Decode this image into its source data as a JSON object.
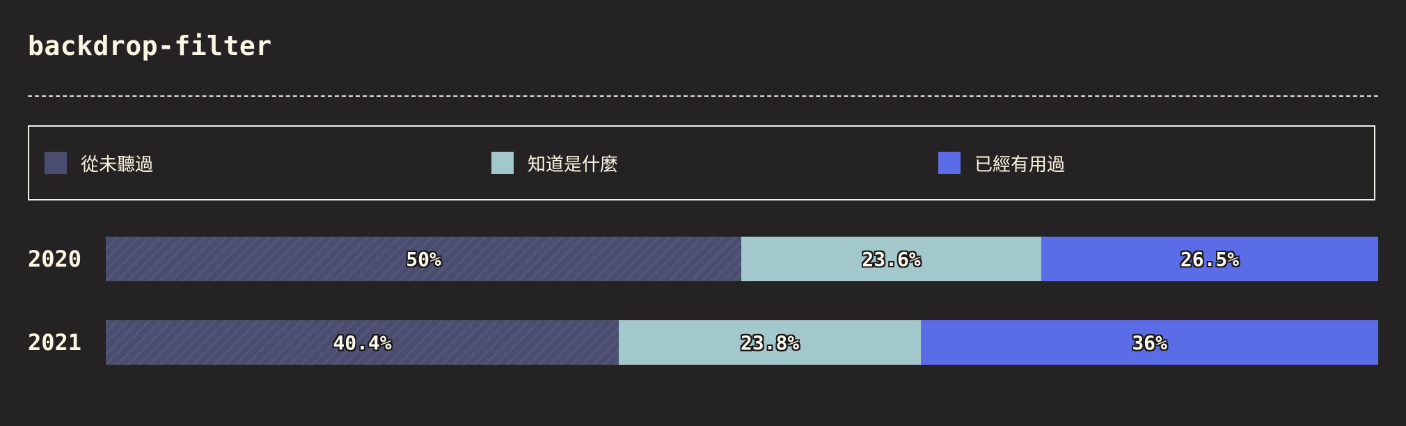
{
  "title": "backdrop-filter",
  "legend": [
    {
      "label": "從未聽過",
      "color": "#4a4d70"
    },
    {
      "label": "知道是什麼",
      "color": "#a3c8cc"
    },
    {
      "label": "已經有用過",
      "color": "#5a6de6"
    }
  ],
  "chart_data": {
    "type": "bar",
    "orientation": "horizontal",
    "stacked": true,
    "categories": [
      "2020",
      "2021"
    ],
    "series": [
      {
        "name": "從未聽過",
        "values": [
          50,
          40.4
        ],
        "labels": [
          "50%",
          "40.4%"
        ]
      },
      {
        "name": "知道是什麼",
        "values": [
          23.6,
          23.8
        ],
        "labels": [
          "23.6%",
          "23.8%"
        ]
      },
      {
        "name": "已經有用過",
        "values": [
          26.5,
          36
        ],
        "labels": [
          "26.5%",
          "36%"
        ]
      }
    ],
    "legend_position": "top"
  }
}
